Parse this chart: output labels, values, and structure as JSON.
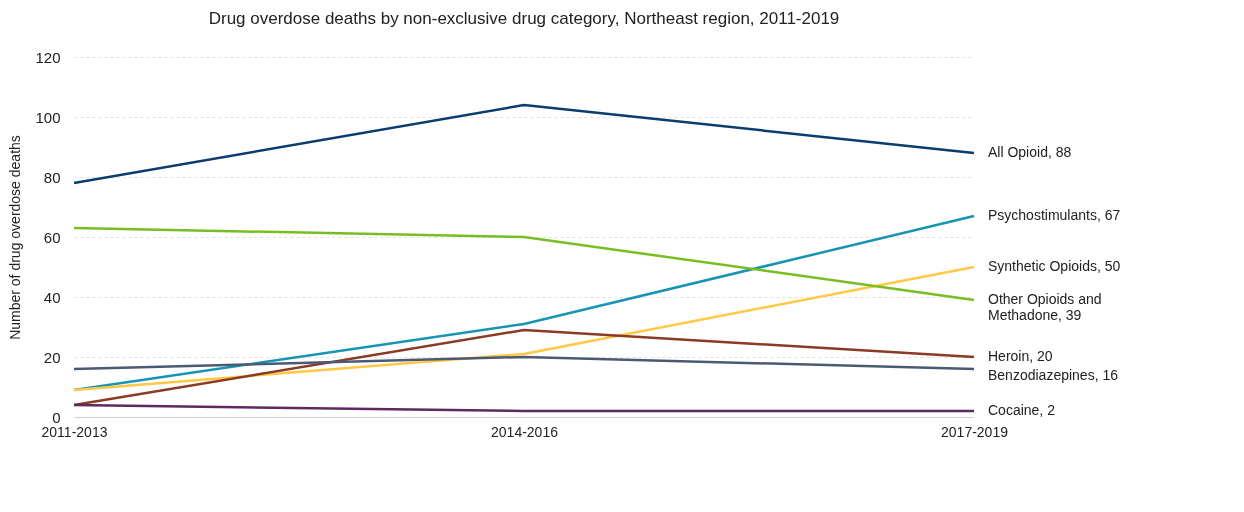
{
  "chart_data": {
    "type": "line",
    "title": "Drug overdose deaths by non-exclusive drug category, Northeast region, 2011-2019",
    "ylabel": "Number of drug overdose deaths",
    "categories": [
      "2011-2013",
      "2014-2016",
      "2017-2019"
    ],
    "ylim": [
      0,
      120
    ],
    "yticks": [
      0,
      20,
      40,
      60,
      80,
      100,
      120
    ],
    "grid": "y",
    "legend": false,
    "marker": "none",
    "line_style": "solid",
    "series": [
      {
        "name": "All Opioid",
        "color": "#0b3c6e",
        "values": [
          78,
          104,
          88
        ],
        "value_labels": [
          null,
          null,
          ", 88"
        ]
      },
      {
        "name": "Psychostimulants",
        "color": "#1595b3",
        "values": [
          9,
          31,
          67
        ],
        "value_labels": [
          null,
          null,
          ", 67"
        ]
      },
      {
        "name": "Synthetic Opioids",
        "color": "#ffc845",
        "values": [
          9,
          21,
          50
        ],
        "value_labels": [
          null,
          null,
          ", 50"
        ]
      },
      {
        "name": "Other Opioids and Methadone",
        "color": "#78be21",
        "values": [
          63,
          60,
          39
        ],
        "value_labels": [
          null,
          null,
          ", 39"
        ]
      },
      {
        "name": "Heroin",
        "color": "#8b3a24",
        "values": [
          4,
          29,
          20
        ],
        "value_labels": [
          null,
          null,
          ", 20"
        ]
      },
      {
        "name": "Benzodiazepines",
        "color": "#4b5a72",
        "values": [
          16,
          20,
          16
        ],
        "value_labels": [
          null,
          null,
          ", 16"
        ]
      },
      {
        "name": "Cocaine",
        "color": "#5d2a5f",
        "values": [
          4,
          2,
          2
        ],
        "value_labels": [
          null,
          null,
          ", 2"
        ]
      }
    ]
  }
}
